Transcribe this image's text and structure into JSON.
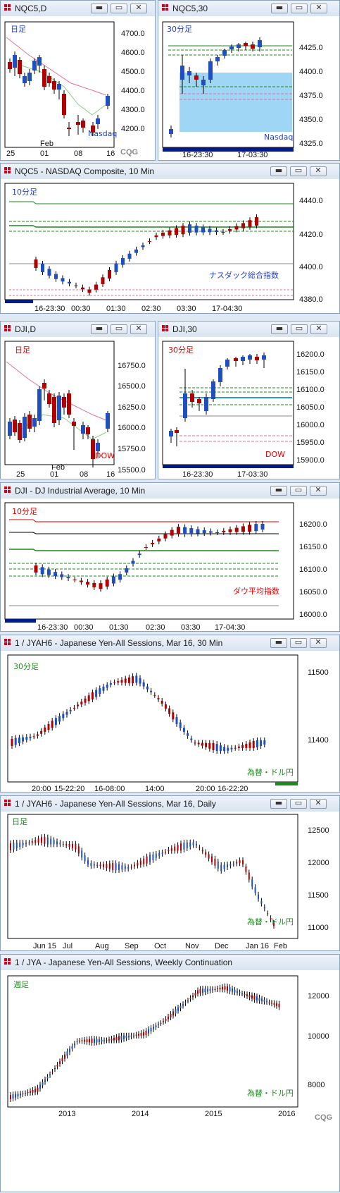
{
  "colors": {
    "up": "#1f4fbf",
    "down": "#b00000",
    "wick": "#000000",
    "accent": "#0000a0"
  },
  "windows": [
    {
      "id": "nqc5-daily",
      "title": "NQC5,D",
      "timeframe_label": "日足",
      "timeframe_color": "#1f3fd0",
      "instrument_label": "Nasdaq",
      "instrument_color": "#1f3fd0",
      "y_ticks": [
        "4700.0",
        "4600.0",
        "4500.0",
        "4400.0",
        "4300.0",
        "4200.0"
      ],
      "x_labels": [
        "25",
        "01",
        "08",
        "16"
      ],
      "extra_x_label": "Feb",
      "logo": "CQG",
      "buttons": [
        "minimize",
        "restore",
        "close"
      ]
    },
    {
      "id": "nqc5-30",
      "title": "NQC5,30",
      "timeframe_label": "30分足",
      "timeframe_color": "#1f3fd0",
      "instrument_label": "Nasdaq",
      "instrument_color": "#1f3fd0",
      "y_ticks": [
        "4425.0",
        "4400.0",
        "4375.0",
        "4350.0",
        "4325.0"
      ],
      "x_labels": [
        "16-23:30",
        "17-03:30"
      ],
      "buttons": [
        "minimize",
        "restore",
        "close"
      ]
    },
    {
      "id": "nqc5-10min",
      "title": "NQC5 - NASDAQ Composite, 10 Min",
      "timeframe_label": "10分足",
      "timeframe_color": "#1f3fd0",
      "instrument_label": "ナスダック総合指数",
      "instrument_color": "#1f3fd0",
      "y_ticks": [
        "4440.0",
        "4420.0",
        "4400.0",
        "4380.0"
      ],
      "x_labels": [
        "16-23:30",
        "00:30",
        "01:30",
        "02:30",
        "03:30",
        "17-04:30"
      ],
      "buttons": [
        "minimize",
        "restore",
        "close"
      ]
    },
    {
      "id": "dji-daily",
      "title": "DJI,D",
      "timeframe_label": "日足",
      "timeframe_color": "#e00000",
      "instrument_label": "DOW",
      "instrument_color": "#e00000",
      "y_ticks": [
        "16750.0",
        "16500.0",
        "16250.0",
        "16000.0",
        "15750.0",
        "15500.0"
      ],
      "x_labels": [
        "25",
        "01",
        "08",
        "16"
      ],
      "extra_x_label": "Feb",
      "buttons": [
        "minimize",
        "restore",
        "close"
      ]
    },
    {
      "id": "dji-30",
      "title": "DJI,30",
      "timeframe_label": "30分足",
      "timeframe_color": "#e00000",
      "instrument_label": "DOW",
      "instrument_color": "#e00000",
      "y_ticks": [
        "16200.0",
        "16150.0",
        "16100.0",
        "16050.0",
        "16000.0",
        "15950.0",
        "15900.0"
      ],
      "x_labels": [
        "16-23:30",
        "17-03:30"
      ],
      "buttons": [
        "minimize",
        "restore",
        "close"
      ]
    },
    {
      "id": "dji-10min",
      "title": "DJI - DJ Industrial Average, 10 Min",
      "timeframe_label": "10分足",
      "timeframe_color": "#e00000",
      "instrument_label": "ダウ平均指数",
      "instrument_color": "#e00000",
      "y_ticks": [
        "16200.0",
        "16150.0",
        "16100.0",
        "16050.0",
        "16000.0"
      ],
      "x_labels": [
        "16-23:30",
        "00:30",
        "01:30",
        "02:30",
        "03:30",
        "17-04:30"
      ],
      "buttons": [
        "minimize",
        "restore",
        "close"
      ]
    },
    {
      "id": "jyah6-30",
      "title": "1 / JYAH6 - Japanese Yen-All Sessions, Mar 16, 30 Min",
      "timeframe_label": "30分足",
      "timeframe_color": "#1a8a1a",
      "instrument_label": "為替・ドル円",
      "instrument_color": "#1a8a1a",
      "y_ticks": [
        "11500",
        "11400"
      ],
      "x_labels": [
        "20:00",
        "15-22:20",
        "16-08:00",
        "14:00",
        "20:00",
        "16-22:20"
      ],
      "buttons": [
        "minimize",
        "restore",
        "close"
      ]
    },
    {
      "id": "jyah6-daily",
      "title": "1 / JYAH6 - Japanese Yen-All Sessions, Mar 16, Daily",
      "timeframe_label": "日足",
      "timeframe_color": "#1a8a1a",
      "instrument_label": "為替・ドル円",
      "instrument_color": "#1a8a1a",
      "y_ticks": [
        "12500",
        "12000",
        "11500",
        "11000"
      ],
      "x_labels": [
        "Jun 15",
        "Jul",
        "Aug",
        "Sep",
        "Oct",
        "Nov",
        "Dec",
        "Jan 16",
        "Feb"
      ],
      "buttons": [
        "minimize",
        "restore",
        "close"
      ]
    },
    {
      "id": "jya-weekly",
      "title": "1 / JYA - Japanese Yen-All Sessions, Weekly Continuation",
      "timeframe_label": "週足",
      "timeframe_color": "#1a8a1a",
      "instrument_label": "為替・ドル円",
      "instrument_color": "#1a8a1a",
      "y_ticks": [
        "12000",
        "10000",
        "8000"
      ],
      "x_labels": [
        "2013",
        "2014",
        "2015",
        "2016"
      ],
      "logo": "CQG",
      "buttons": [
        "minimize",
        "restore",
        "close"
      ]
    }
  ]
}
